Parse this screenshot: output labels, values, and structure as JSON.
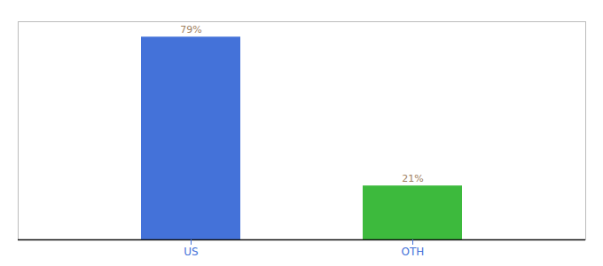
{
  "chart_data": {
    "type": "bar",
    "categories": [
      "US",
      "OTH"
    ],
    "values": [
      79,
      21
    ],
    "value_labels": [
      "79%",
      "21%"
    ],
    "colors": [
      "#4472d9",
      "#3dba3d"
    ],
    "ylim": [
      0,
      85
    ],
    "data_labels": true,
    "tick_labels": "x"
  }
}
